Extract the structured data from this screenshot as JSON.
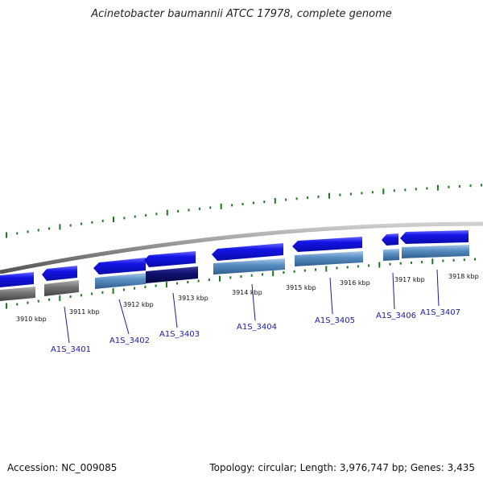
{
  "title": "Acinetobacter baumannii ATCC 17978, complete genome",
  "footer": {
    "accession": "Accession: NC_009085",
    "topology": "Topology: circular; Length: 3,976,747 bp; Genes: 3,435"
  },
  "colors": {
    "backbone": "#8c8c8c",
    "tick_green": "#1a7a1a",
    "gene_forward": "#1010e0",
    "gene_feature": "#4a7fb5",
    "gene_feature_dark": "#0c0c78",
    "gene_grey": "#6e6e6e",
    "label_blue": "#1a1aa6"
  },
  "kbp_labels": [
    "3910 kbp",
    "3911 kbp",
    "3912 kbp",
    "3913 kbp",
    "3914 kbp",
    "3915 kbp",
    "3916 kbp",
    "3917 kbp",
    "3918 kbp"
  ],
  "gene_labels": [
    "A1S_3401",
    "A1S_3402",
    "A1S_3403",
    "A1S_3404",
    "A1S_3405",
    "A1S_3406",
    "A1S_3407"
  ]
}
